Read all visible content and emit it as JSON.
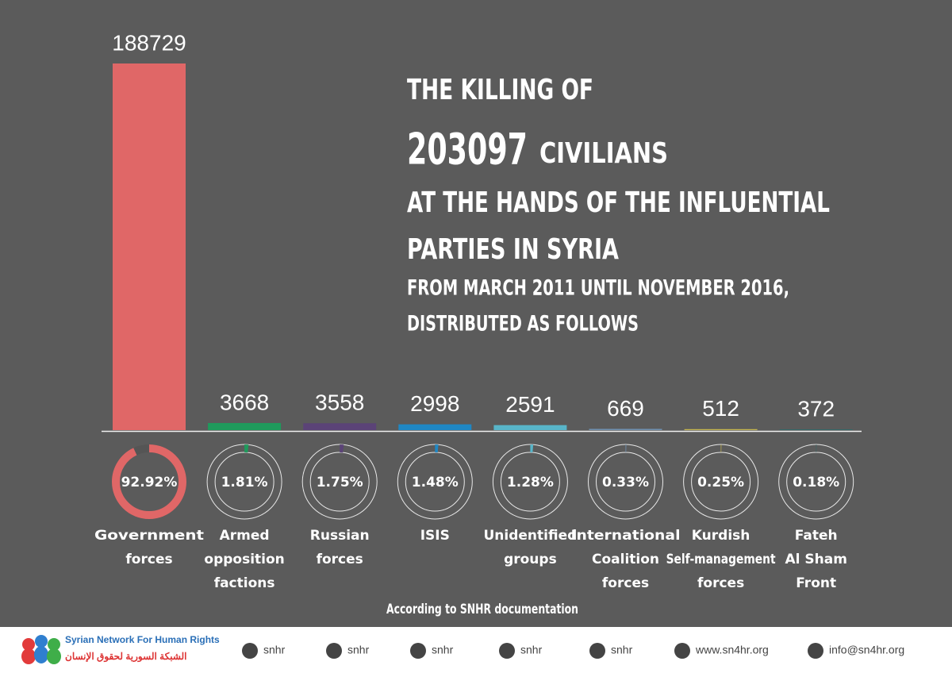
{
  "chart_data": {
    "type": "bar",
    "title": {
      "lead": "THE KILLING OF",
      "total": "203097",
      "total_word": "CIVILIANS",
      "line3": "AT THE HANDS OF THE INFLUENTIAL",
      "line4": "PARTIES IN SYRIA",
      "line5": "FROM MARCH 2011 UNTIL NOVEMBER 2016,",
      "line6": "DISTRIBUTED AS FOLLOWS"
    },
    "categories": [
      "Government\nforces",
      "Armed\nopposition\nfactions",
      "Russian\nforces",
      "ISIS",
      "Unidentified\ngroups",
      "International\nCoalition\nforces",
      "Kurdish\nSelf-management\nforces",
      "Fateh\nAl Sham\nFront"
    ],
    "values": [
      188729,
      3668,
      3558,
      2998,
      2591,
      669,
      512,
      372
    ],
    "colors": [
      "#e06767",
      "#1f9a5c",
      "#5b4377",
      "#1f87c4",
      "#58b5c9",
      "#6f8fae",
      "#c9b94e",
      "#2e6b6b"
    ],
    "shares": [
      92.92,
      1.81,
      1.75,
      1.48,
      1.28,
      0.33,
      0.25,
      0.18
    ],
    "share_labels": [
      "92.92%",
      "1.81%",
      "1.75%",
      "1.48%",
      "1.28%",
      "0.33%",
      "0.25%",
      "0.18%"
    ],
    "note": "According to SNHR documentation"
  },
  "footer": {
    "org_name": "Syrian Network For Human Rights",
    "org_name_ar": "الشبكة السورية لحقوق الإنسان",
    "links": [
      "snhr",
      "snhr",
      "snhr",
      "snhr",
      "snhr",
      "www.sn4hr.org",
      "info@sn4hr.org"
    ]
  }
}
